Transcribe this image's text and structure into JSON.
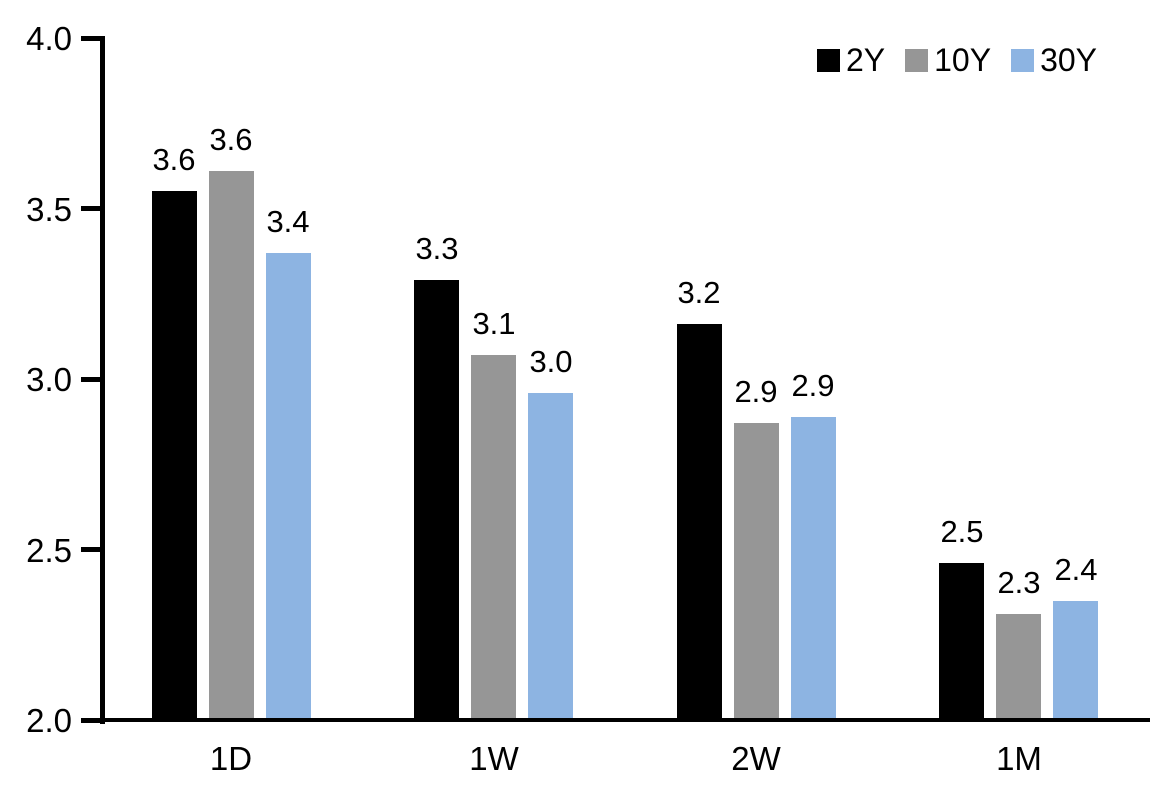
{
  "chart_data": {
    "type": "bar",
    "title": "",
    "xlabel": "",
    "ylabel": "",
    "categories": [
      "1D",
      "1W",
      "2W",
      "1M"
    ],
    "series": [
      {
        "name": "2Y",
        "color": "#000000",
        "values": [
          3.6,
          3.3,
          3.2,
          2.5
        ],
        "plot_values": [
          3.55,
          3.29,
          3.16,
          2.46
        ],
        "labels": [
          "3.6",
          "3.3",
          "3.2",
          "2.5"
        ]
      },
      {
        "name": "10Y",
        "color": "#969696",
        "values": [
          3.6,
          3.1,
          2.9,
          2.3
        ],
        "plot_values": [
          3.61,
          3.07,
          2.87,
          2.31
        ],
        "labels": [
          "3.6",
          "3.1",
          "2.9",
          "2.3"
        ]
      },
      {
        "name": "30Y",
        "color": "#8DB4E2",
        "values": [
          3.4,
          3.0,
          2.9,
          2.4
        ],
        "plot_values": [
          3.37,
          2.96,
          2.89,
          2.35
        ],
        "labels": [
          "3.4",
          "3.0",
          "2.9",
          "2.4"
        ]
      }
    ],
    "ylim": [
      2.0,
      4.0
    ],
    "yticks": [
      4.0,
      3.5,
      3.0,
      2.5,
      2.0
    ],
    "ytick_labels": [
      "4.0",
      "3.5",
      "3.0",
      "2.5",
      "2.0"
    ],
    "grid": false,
    "data_labels": true,
    "legend_position": "top-right",
    "axis_color": "#000000",
    "background_color": "#ffffff"
  }
}
